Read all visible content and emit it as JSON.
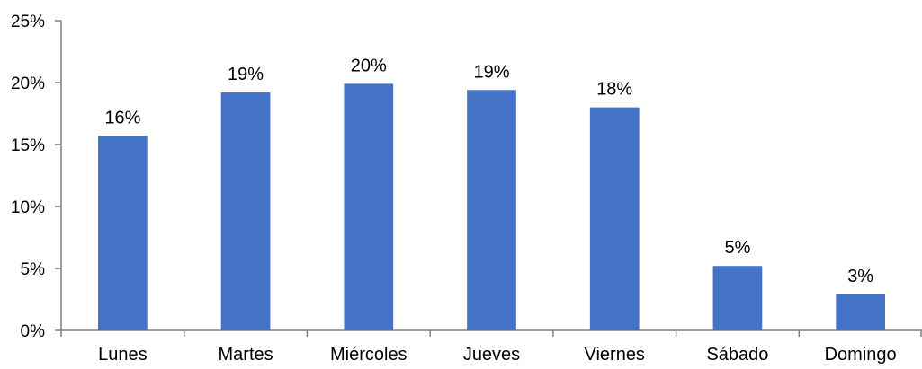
{
  "chart_data": {
    "type": "bar",
    "categories": [
      "Lunes",
      "Martes",
      "Miércoles",
      "Jueves",
      "Viernes",
      "Sábado",
      "Domingo"
    ],
    "values": [
      15.7,
      19.2,
      19.9,
      19.4,
      18.0,
      5.2,
      2.9
    ],
    "data_labels": [
      "16%",
      "19%",
      "20%",
      "19%",
      "18%",
      "5%",
      "3%"
    ],
    "y_ticks": [
      0,
      5,
      10,
      15,
      20,
      25
    ],
    "y_tick_labels": [
      "0%",
      "5%",
      "10%",
      "15%",
      "20%",
      "25%"
    ],
    "ylim": [
      0,
      25
    ],
    "title": "",
    "xlabel": "",
    "ylabel": "",
    "grid": false,
    "legend": "none",
    "bar_color": "#4472C4",
    "axis_color": "#7F7F7F"
  }
}
